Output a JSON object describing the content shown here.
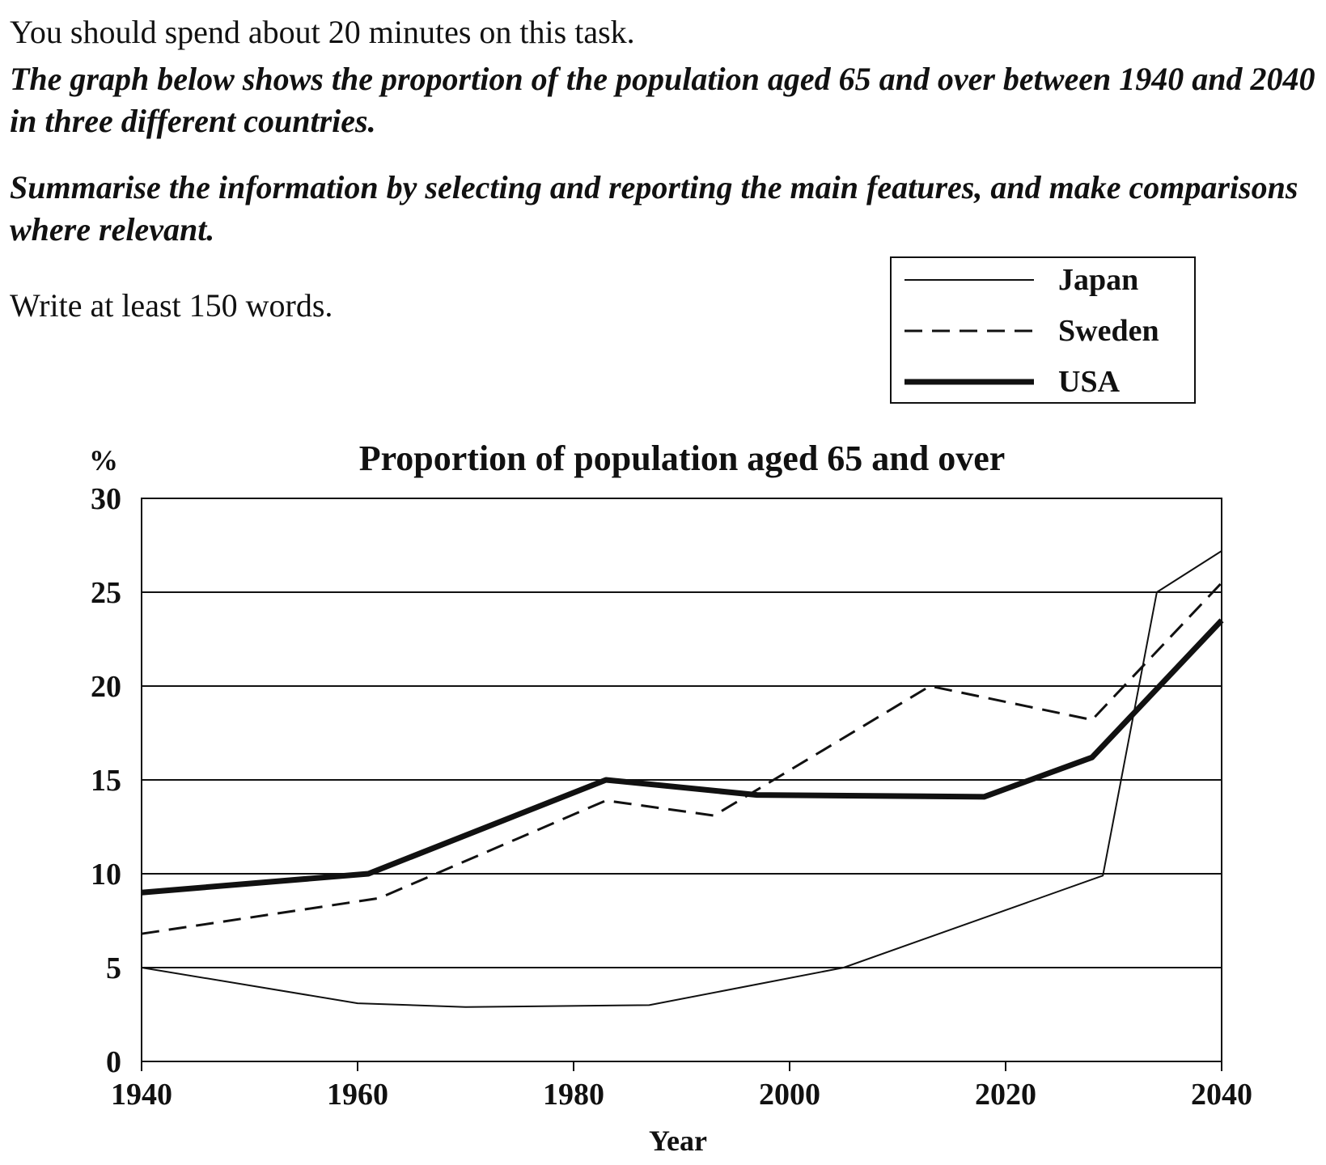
{
  "task": {
    "time_note": "You should spend about 20 minutes on this task.",
    "prompt": "The graph below shows the proportion of the population aged 65 and over between 1940 and 2040 in three different countries.",
    "instruction": "Summarise the information by selecting and reporting the main features, and make comparisons where relevant.",
    "word_count": "Write at least 150 words."
  },
  "chart_data": {
    "type": "line",
    "title": "Proportion of population aged 65 and over",
    "ylabel": "%",
    "xlabel": "Year",
    "ylim": [
      0,
      30
    ],
    "xlim": [
      1940,
      2040
    ],
    "yticks": [
      0,
      5,
      10,
      15,
      20,
      25,
      30
    ],
    "xticks": [
      1940,
      1960,
      1980,
      2000,
      2020,
      2040
    ],
    "grid": "horizontal",
    "legend_position": "top-right",
    "series": [
      {
        "name": "Japan",
        "style": "solid-thin",
        "x": [
          1940,
          1960,
          1970,
          1987,
          2005,
          2029,
          2034,
          2040
        ],
        "y": [
          5,
          3.1,
          2.9,
          3,
          5,
          9.9,
          25,
          27.2
        ]
      },
      {
        "name": "Sweden",
        "style": "dashed",
        "x": [
          1940,
          1962,
          1983,
          1993,
          2013,
          2028,
          2040
        ],
        "y": [
          6.8,
          8.7,
          13.9,
          13.1,
          20,
          18.2,
          25.5
        ]
      },
      {
        "name": "USA",
        "style": "solid-thick",
        "x": [
          1940,
          1961,
          1983,
          1997,
          2018,
          2028,
          2040
        ],
        "y": [
          9,
          10,
          15,
          14.2,
          14.1,
          16.2,
          23.5
        ]
      }
    ]
  }
}
